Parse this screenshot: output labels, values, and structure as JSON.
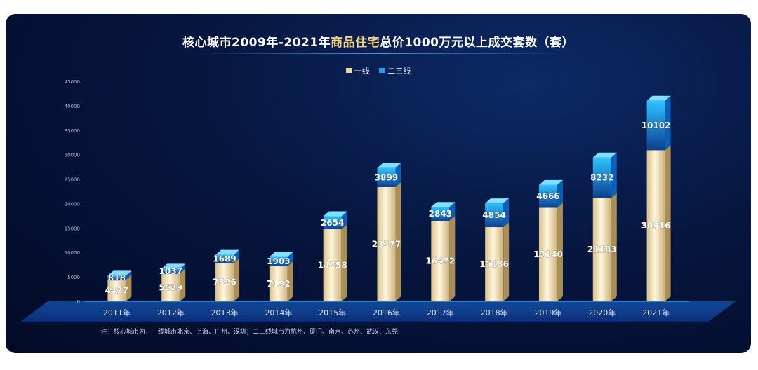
{
  "chart_data": {
    "type": "bar",
    "stacked": true,
    "title": "核心城市2009年-2021年商品住宅总价1000万元以上成交套数（套）",
    "title_parts": [
      "核心城市2009年-2021年",
      "商品住宅",
      "总价1000万元以上成交套数（套）"
    ],
    "categories": [
      "2011年",
      "2012年",
      "2013年",
      "2014年",
      "2015年",
      "2016年",
      "2017年",
      "2018年",
      "2019年",
      "2020年",
      "2021年"
    ],
    "series": [
      {
        "name": "一线",
        "values": [
          4427,
          5639,
          7826,
          7192,
          14758,
          23377,
          16472,
          15186,
          19140,
          21183,
          30916
        ],
        "color": "#e9d7a6"
      },
      {
        "name": "二三线",
        "values": [
          818,
          1037,
          1689,
          1903,
          2654,
          3899,
          2843,
          4854,
          4666,
          8232,
          10102
        ],
        "color": "#1e9be8"
      }
    ],
    "y_ticks": [
      0,
      5000,
      10000,
      15000,
      20000,
      25000,
      30000,
      35000,
      40000,
      45000
    ],
    "ylim": [
      0,
      45000
    ],
    "legend_position": "top-center",
    "grid": false,
    "note": "注：核心城市为，一线城市北京、上海、广州、深圳；二三线城市为杭州、厦门、南京、苏州、武汉、东莞"
  }
}
